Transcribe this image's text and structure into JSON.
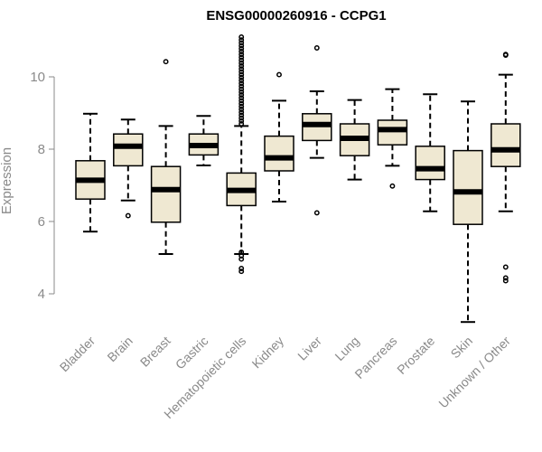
{
  "chart_data": {
    "type": "box",
    "title": "ENSG00000260916 - CCPG1",
    "ylabel": "Expression",
    "xlabel": "",
    "ylim": [
      3.0,
      11.3
    ],
    "yticks": [
      4,
      6,
      8,
      10
    ],
    "categories": [
      "Bladder",
      "Brain",
      "Breast",
      "Gastric",
      "Hematopoietic cells",
      "Kidney",
      "Liver",
      "Lung",
      "Pancreas",
      "Prostate",
      "Skin",
      "Unknown / Other"
    ],
    "boxes": [
      {
        "whisker_low": 5.72,
        "q1": 6.62,
        "median": 7.14,
        "q3": 7.68,
        "whisker_high": 8.98,
        "outliers": []
      },
      {
        "whisker_low": 6.58,
        "q1": 7.54,
        "median": 8.08,
        "q3": 8.42,
        "whisker_high": 8.82,
        "outliers": [
          6.16
        ]
      },
      {
        "whisker_low": 5.1,
        "q1": 5.98,
        "median": 6.88,
        "q3": 7.52,
        "whisker_high": 8.64,
        "outliers": [
          10.42
        ]
      },
      {
        "whisker_low": 7.55,
        "q1": 7.84,
        "median": 8.1,
        "q3": 8.42,
        "whisker_high": 8.92,
        "outliers": []
      },
      {
        "whisker_low": 5.1,
        "q1": 6.44,
        "median": 6.86,
        "q3": 7.34,
        "whisker_high": 8.64,
        "outliers": [
          4.62,
          4.7,
          4.96,
          5.05,
          5.15,
          8.7,
          8.78,
          8.86,
          8.94,
          9.02,
          9.1,
          9.18,
          9.26,
          9.34,
          9.42,
          9.5,
          9.58,
          9.66,
          9.74,
          9.82,
          9.9,
          9.98,
          10.06,
          10.14,
          10.22,
          10.3,
          10.38,
          10.46,
          10.54,
          10.62,
          10.7,
          10.78,
          10.86,
          10.94,
          11.02,
          11.1
        ]
      },
      {
        "whisker_low": 6.55,
        "q1": 7.4,
        "median": 7.76,
        "q3": 8.36,
        "whisker_high": 9.34,
        "outliers": [
          10.06
        ]
      },
      {
        "whisker_low": 7.76,
        "q1": 8.24,
        "median": 8.68,
        "q3": 8.98,
        "whisker_high": 9.6,
        "outliers": [
          6.24,
          10.8
        ]
      },
      {
        "whisker_low": 7.16,
        "q1": 7.82,
        "median": 8.3,
        "q3": 8.7,
        "whisker_high": 9.36,
        "outliers": []
      },
      {
        "whisker_low": 7.54,
        "q1": 8.12,
        "median": 8.54,
        "q3": 8.8,
        "whisker_high": 9.66,
        "outliers": [
          6.98
        ]
      },
      {
        "whisker_low": 6.28,
        "q1": 7.16,
        "median": 7.46,
        "q3": 8.08,
        "whisker_high": 9.52,
        "outliers": []
      },
      {
        "whisker_low": 3.22,
        "q1": 5.92,
        "median": 6.82,
        "q3": 7.96,
        "whisker_high": 9.32,
        "outliers": []
      },
      {
        "whisker_low": 6.28,
        "q1": 7.52,
        "median": 7.98,
        "q3": 8.7,
        "whisker_high": 10.06,
        "outliers": [
          4.36,
          4.44,
          4.74,
          10.6,
          10.62
        ]
      }
    ],
    "colors": {
      "box_fill": "#efe8d2",
      "stroke": "#000000",
      "axis_text": "#8a8a8a"
    },
    "grid": false,
    "legend": "none"
  }
}
